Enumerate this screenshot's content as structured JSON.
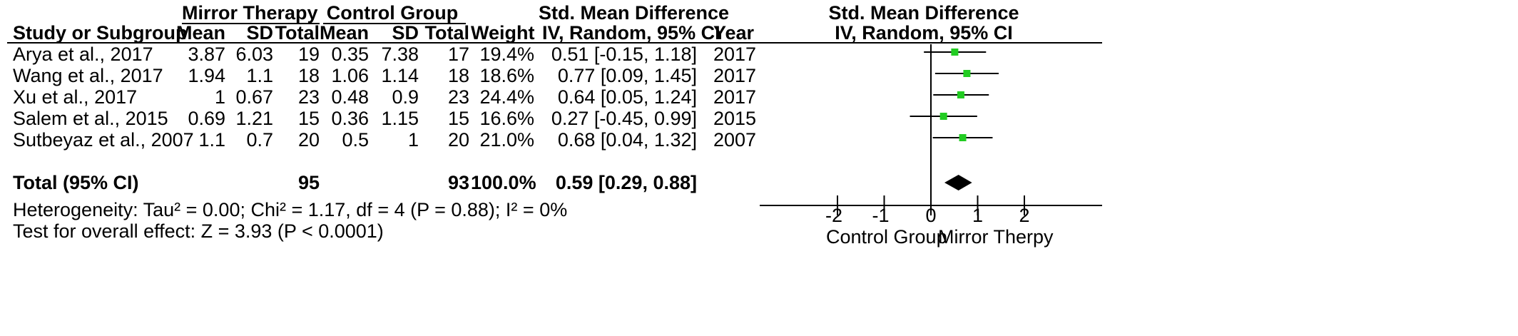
{
  "headers": {
    "group1": "Mirror Therapy",
    "group2": "Control Group",
    "smd_title": "Std. Mean Difference",
    "study_col": "Study or Subgroup",
    "mean": "Mean",
    "sd": "SD",
    "total": "Total",
    "weight": "Weight",
    "ci_method": "IV, Random, 95% CI",
    "year": "Year",
    "plot_title": "Std. Mean Difference",
    "plot_subtitle": "IV, Random, 95% CI"
  },
  "studies": [
    {
      "name": "Arya et al., 2017",
      "m1": "3.87",
      "sd1": "6.03",
      "n1": "19",
      "m2": "0.35",
      "sd2": "7.38",
      "n2": "17",
      "weight": "19.4%",
      "ci": "0.51 [-0.15, 1.18]",
      "year": "2017"
    },
    {
      "name": "Wang et al., 2017",
      "m1": "1.94",
      "sd1": "1.1",
      "n1": "18",
      "m2": "1.06",
      "sd2": "1.14",
      "n2": "18",
      "weight": "18.6%",
      "ci": "0.77 [0.09, 1.45]",
      "year": "2017"
    },
    {
      "name": "Xu et al., 2017",
      "m1": "1",
      "sd1": "0.67",
      "n1": "23",
      "m2": "0.48",
      "sd2": "0.9",
      "n2": "23",
      "weight": "24.4%",
      "ci": "0.64 [0.05, 1.24]",
      "year": "2017"
    },
    {
      "name": "Salem et al., 2015",
      "m1": "0.69",
      "sd1": "1.21",
      "n1": "15",
      "m2": "0.36",
      "sd2": "1.15",
      "n2": "15",
      "weight": "16.6%",
      "ci": "0.27 [-0.45, 0.99]",
      "year": "2015"
    },
    {
      "name": "Sutbeyaz et al., 2007",
      "m1": "1.1",
      "sd1": "0.7",
      "n1": "20",
      "m2": "0.5",
      "sd2": "1",
      "n2": "20",
      "weight": "21.0%",
      "ci": "0.68 [0.04, 1.32]",
      "year": "2007"
    }
  ],
  "total": {
    "name": "Total (95% CI)",
    "n1": "95",
    "n2": "93",
    "weight": "100.0%",
    "ci": "0.59 [0.29, 0.88]"
  },
  "heterogeneity": "Heterogeneity: Tau² = 0.00; Chi² = 1.17, df = 4 (P = 0.88); I² = 0%",
  "overall_effect": "Test for overall effect: Z = 3.93 (P < 0.0001)",
  "axis_labels": {
    "left": "Control Group",
    "right": "Mirror Therpy"
  },
  "chart_data": {
    "type": "forest",
    "xlim": [
      -3,
      3
    ],
    "ticks": [
      -2,
      -1,
      0,
      1,
      2
    ],
    "tick_labels": [
      "-2",
      "-1",
      "0",
      "1",
      "2"
    ],
    "null_line": 0,
    "marker_color": "#22cc22",
    "series": [
      {
        "label": "Arya et al., 2017",
        "estimate": 0.51,
        "lower": -0.15,
        "upper": 1.18
      },
      {
        "label": "Wang et al., 2017",
        "estimate": 0.77,
        "lower": 0.09,
        "upper": 1.45
      },
      {
        "label": "Xu et al., 2017",
        "estimate": 0.64,
        "lower": 0.05,
        "upper": 1.24
      },
      {
        "label": "Salem et al., 2015",
        "estimate": 0.27,
        "lower": -0.45,
        "upper": 0.99
      },
      {
        "label": "Sutbeyaz et al., 2007",
        "estimate": 0.68,
        "lower": 0.04,
        "upper": 1.32
      }
    ],
    "pooled": {
      "estimate": 0.59,
      "lower": 0.29,
      "upper": 0.88
    }
  }
}
